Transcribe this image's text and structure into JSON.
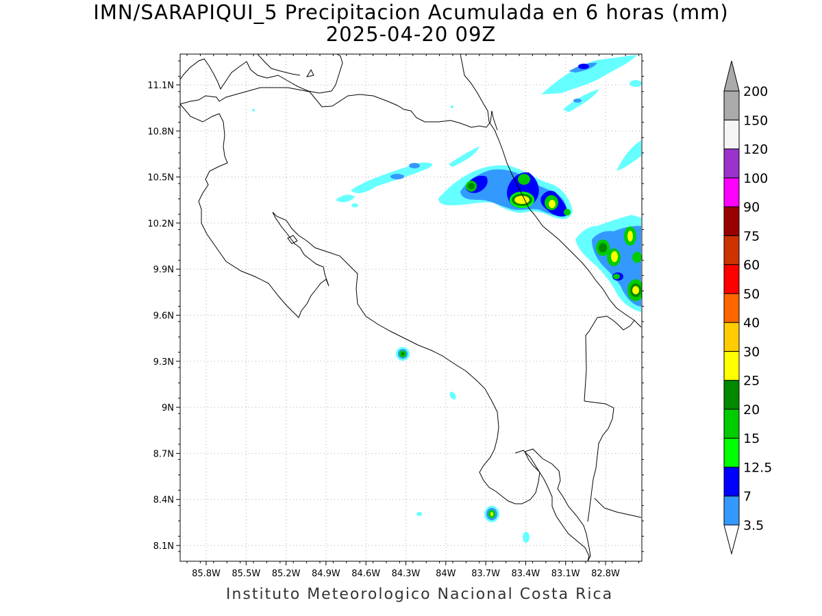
{
  "title": {
    "line1": "IMN/SARAPIQUI_5 Precipitacion Acumulada en 6 horas (mm)",
    "line2": "2025-04-20 09Z"
  },
  "footer": "Instituto Meteorologico Nacional Costa Rica",
  "map": {
    "lon_ticks": [
      "85.8W",
      "85.5W",
      "85.2W",
      "84.9W",
      "84.6W",
      "84.3W",
      "84W",
      "83.7W",
      "83.4W",
      "83.1W",
      "82.8W"
    ],
    "lat_ticks": [
      "11.1N",
      "10.8N",
      "10.5N",
      "10.2N",
      "9.9N",
      "9.6N",
      "9.3N",
      "9N",
      "8.7N",
      "8.4N",
      "8.1N"
    ],
    "grid": "dotted"
  },
  "colorbar": {
    "levels": [
      "3.5",
      "7",
      "12.5",
      "15",
      "20",
      "25",
      "30",
      "40",
      "50",
      "60",
      "75",
      "90",
      "100",
      "120",
      "150",
      "200"
    ],
    "colors": [
      "#66ffff",
      "#3399ff",
      "#0000ff",
      "#00ff00",
      "#00cc00",
      "#008800",
      "#ffff00",
      "#ffcc00",
      "#ff6600",
      "#ff0000",
      "#cc3300",
      "#990000",
      "#ff00ff",
      "#9933cc",
      "#f5f5f5",
      "#aaaaaa"
    ]
  }
}
